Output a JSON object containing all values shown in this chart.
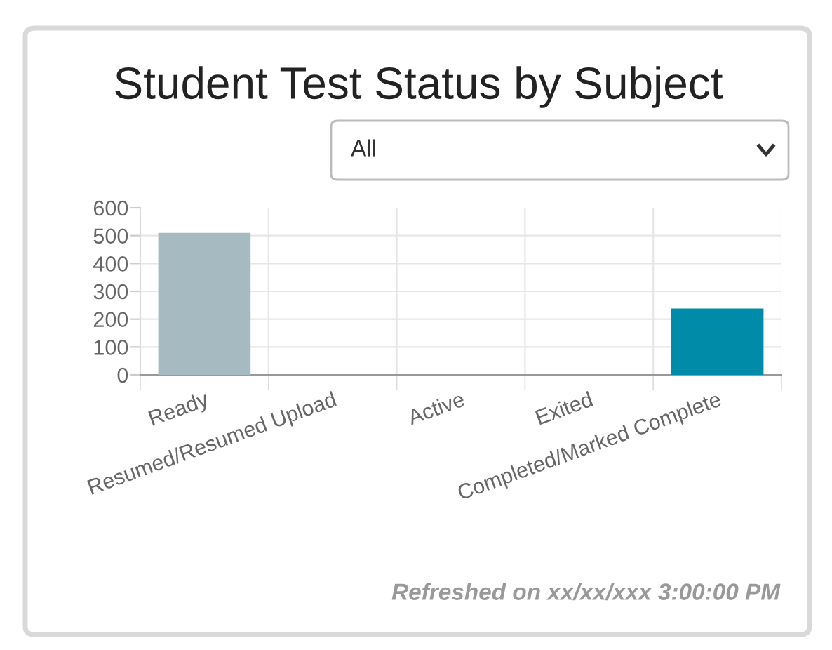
{
  "chart_data": {
    "type": "bar",
    "title": "Student Test Status by Subject",
    "categories": [
      "Ready",
      "Resumed/Resumed Upload",
      "Active",
      "Exited",
      "Completed/Marked Complete"
    ],
    "values": [
      510,
      0,
      0,
      0,
      238
    ],
    "colors": [
      "#a5bbc1",
      "#a5bbc1",
      "#a5bbc1",
      "#a5bbc1",
      "#008ca8"
    ],
    "ylim": [
      0,
      600
    ],
    "yticks": [
      0,
      100,
      200,
      300,
      400,
      500,
      600
    ],
    "grid": true,
    "annotations": [
      "All",
      "Refreshed on xx/xx/xxx 3:00:00 PM"
    ]
  }
}
